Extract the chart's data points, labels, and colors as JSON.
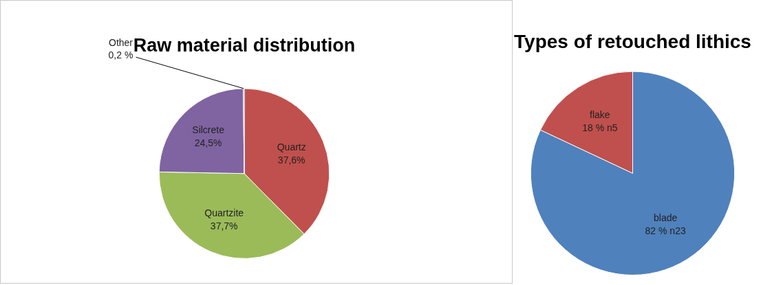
{
  "chart_data": [
    {
      "type": "pie",
      "title": "Raw material distribution",
      "categories": [
        "Quartz",
        "Quartzite",
        "Silcrete",
        "Other"
      ],
      "values": [
        37.6,
        37.7,
        24.5,
        0.2
      ],
      "colors": [
        "#c0504d",
        "#9bbb59",
        "#8064a2",
        "#4f81bd"
      ],
      "value_labels": [
        "37,6%",
        "37,7%",
        "24,5%",
        "0,2 %"
      ]
    },
    {
      "type": "pie",
      "title": "Types of retouched lithics",
      "categories": [
        "blade",
        "flake"
      ],
      "values": [
        82,
        18
      ],
      "colors": [
        "#4f81bd",
        "#c0504d"
      ],
      "value_labels": [
        "82 % n23",
        "18 % n5"
      ]
    }
  ]
}
